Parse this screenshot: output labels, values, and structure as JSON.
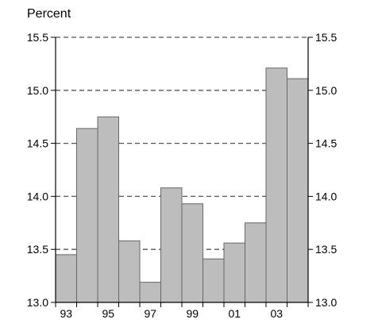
{
  "chart_data": {
    "type": "bar",
    "title": "",
    "unit_label": "Percent",
    "xlabel": "",
    "ylabel": "",
    "years": [
      "1993",
      "1994",
      "1995",
      "1996",
      "1997",
      "1998",
      "1999",
      "2000",
      "2001",
      "2002",
      "2003",
      "2004"
    ],
    "x_tick_labels": [
      "93",
      "",
      "95",
      "",
      "97",
      "",
      "99",
      "",
      "01",
      "",
      "03",
      ""
    ],
    "values": [
      13.45,
      14.64,
      14.75,
      13.58,
      13.19,
      14.08,
      13.93,
      13.41,
      13.56,
      13.75,
      15.21,
      15.11
    ],
    "ylim": [
      13.0,
      15.5
    ],
    "y_ticks": [
      13.0,
      13.5,
      14.0,
      14.5,
      15.0,
      15.5
    ],
    "y_tick_labels": [
      "13.0",
      "13.5",
      "14.0",
      "14.5",
      "15.0",
      "15.5"
    ],
    "right_axis": true,
    "grid": "dashed horizontal",
    "bar_color": "#bdbdbd",
    "bar_edge_color": "#666666",
    "grid_color": "#555555"
  }
}
